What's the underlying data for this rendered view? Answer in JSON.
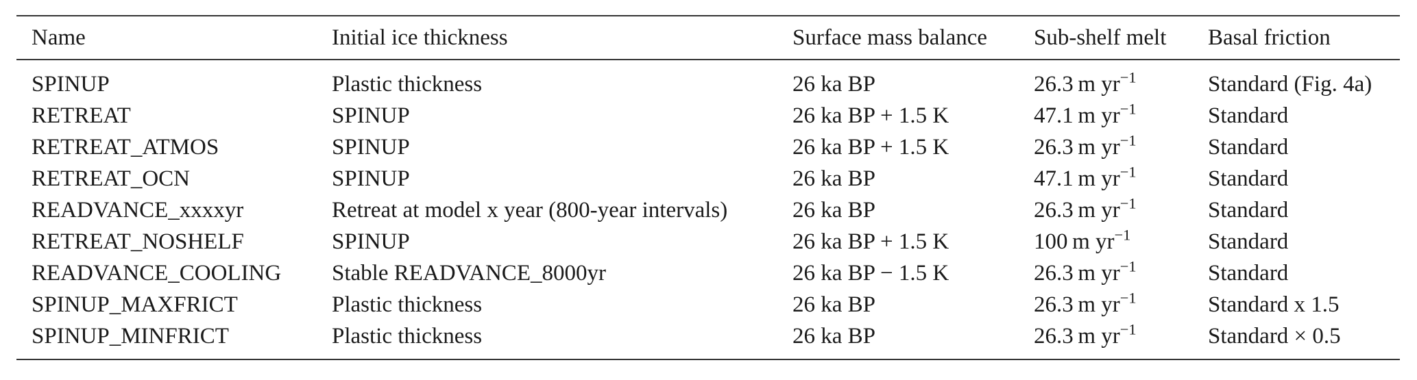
{
  "table": {
    "headers": [
      "Name",
      "Initial ice thickness",
      "Surface mass balance",
      "Sub-shelf melt",
      "Basal friction"
    ],
    "unit_base": "m yr",
    "unit_exponent": "−1",
    "rows": [
      {
        "name": "SPINUP",
        "thickness": "Plastic thickness",
        "smb": "26 ka BP",
        "melt": "26.3",
        "friction": "Standard (Fig. 4a)"
      },
      {
        "name": "RETREAT",
        "thickness": "SPINUP",
        "smb": "26 ka BP + 1.5 K",
        "melt": "47.1",
        "friction": "Standard"
      },
      {
        "name": "RETREAT_ATMOS",
        "thickness": "SPINUP",
        "smb": "26 ka BP + 1.5 K",
        "melt": "26.3",
        "friction": "Standard"
      },
      {
        "name": "RETREAT_OCN",
        "thickness": "SPINUP",
        "smb": "26 ka BP",
        "melt": "47.1",
        "friction": "Standard"
      },
      {
        "name": "READVANCE_xxxxyr",
        "thickness": "Retreat at model x  year (800-year intervals)",
        "smb": "26 ka BP",
        "melt": "26.3",
        "friction": "Standard"
      },
      {
        "name": "RETREAT_NOSHELF",
        "thickness": "SPINUP",
        "smb": "26 ka BP + 1.5 K",
        "melt": "100",
        "friction": "Standard"
      },
      {
        "name": "READVANCE_COOLING",
        "thickness": "Stable READVANCE_8000yr",
        "smb": "26 ka BP − 1.5 K",
        "melt": "26.3",
        "friction": "Standard"
      },
      {
        "name": "SPINUP_MAXFRICT",
        "thickness": "Plastic thickness",
        "smb": "26 ka BP",
        "melt": "26.3",
        "friction": "Standard x 1.5"
      },
      {
        "name": "SPINUP_MINFRICT",
        "thickness": "Plastic thickness",
        "smb": "26 ka BP",
        "melt": "26.3",
        "friction": "Standard × 0.5"
      }
    ]
  }
}
